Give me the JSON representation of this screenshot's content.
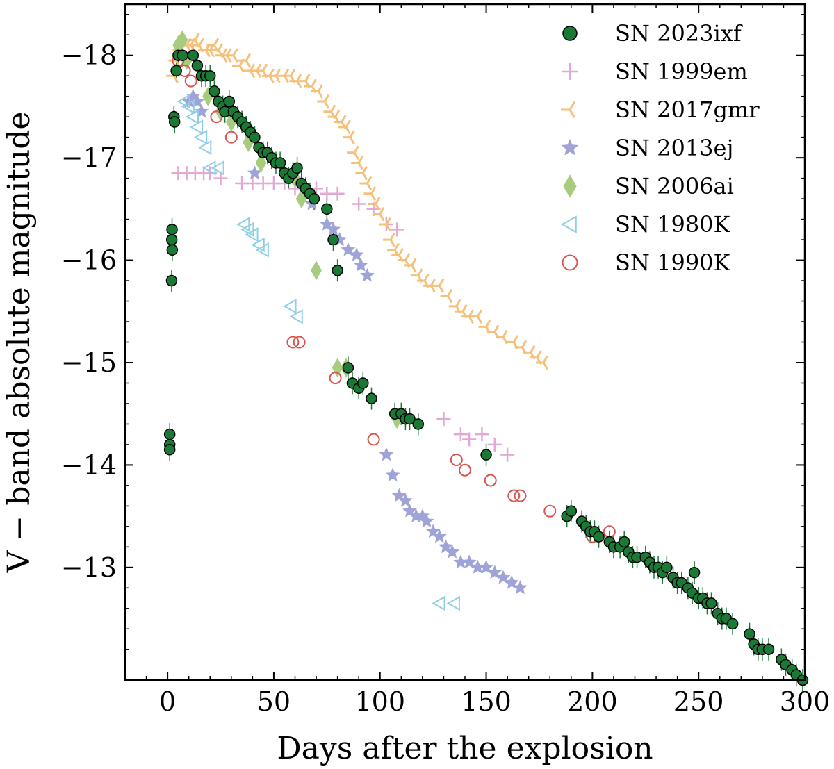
{
  "chart_data": {
    "type": "scatter",
    "title": "",
    "xlabel": "Days after the explosion",
    "ylabel": "V − band absolute magnitude",
    "xlim": [
      -20,
      300
    ],
    "ylim": [
      -11.9,
      -18.5
    ],
    "y_inverted": true,
    "x_ticks": [
      0,
      50,
      100,
      150,
      200,
      250,
      300
    ],
    "y_ticks": [
      -18,
      -17,
      -16,
      -15,
      -14,
      -13
    ],
    "x_tick_labels": [
      "0",
      "50",
      "100",
      "150",
      "200",
      "250",
      "300"
    ],
    "y_tick_labels": [
      "−18",
      "−17",
      "−16",
      "−15",
      "−14",
      "−13"
    ],
    "grid": false,
    "legend_position": "top-right",
    "series": [
      {
        "name": "SN 2023ixf",
        "marker": "filled-circle",
        "color": "#1a7a35",
        "edge": "#000000",
        "errorbars": true,
        "points": [
          [
            1.0,
            -14.2
          ],
          [
            1.0,
            -14.3
          ],
          [
            1.0,
            -14.15
          ],
          [
            1.9,
            -15.8
          ],
          [
            2.0,
            -16.2
          ],
          [
            2.1,
            -16.3
          ],
          [
            2.2,
            -16.1
          ],
          [
            3.0,
            -17.4
          ],
          [
            3.3,
            -17.35
          ],
          [
            4.1,
            -17.85
          ],
          [
            5.0,
            -18.0
          ],
          [
            7.0,
            -18.0
          ],
          [
            12.0,
            -18.0
          ],
          [
            14.0,
            -17.9
          ],
          [
            16.0,
            -17.8
          ],
          [
            18.0,
            -17.8
          ],
          [
            20.0,
            -17.8
          ],
          [
            22.0,
            -17.65
          ],
          [
            24.0,
            -17.55
          ],
          [
            26.0,
            -17.5
          ],
          [
            27.0,
            -17.45
          ],
          [
            29.0,
            -17.55
          ],
          [
            31.0,
            -17.45
          ],
          [
            33.0,
            -17.4
          ],
          [
            35.0,
            -17.35
          ],
          [
            37.0,
            -17.3
          ],
          [
            39.0,
            -17.25
          ],
          [
            41.0,
            -17.2
          ],
          [
            43.0,
            -17.1
          ],
          [
            45.0,
            -17.05
          ],
          [
            47.0,
            -17.05
          ],
          [
            49.0,
            -17.0
          ],
          [
            51.0,
            -16.95
          ],
          [
            53.0,
            -16.95
          ],
          [
            55.0,
            -16.85
          ],
          [
            57.0,
            -16.8
          ],
          [
            59.0,
            -16.85
          ],
          [
            61.0,
            -16.9
          ],
          [
            63.0,
            -16.75
          ],
          [
            65.0,
            -16.7
          ],
          [
            67.0,
            -16.65
          ],
          [
            69.0,
            -16.6
          ],
          [
            75.0,
            -16.5
          ],
          [
            78.0,
            -16.2
          ],
          [
            80.0,
            -15.9
          ],
          [
            85.0,
            -14.95
          ],
          [
            87.0,
            -14.8
          ],
          [
            90.0,
            -14.75
          ],
          [
            92.0,
            -14.8
          ],
          [
            96.0,
            -14.65
          ],
          [
            107.0,
            -14.5
          ],
          [
            110.0,
            -14.5
          ],
          [
            112.0,
            -14.45
          ],
          [
            114.0,
            -14.45
          ],
          [
            118.0,
            -14.4
          ],
          [
            150.0,
            -14.1
          ],
          [
            188.0,
            -13.5
          ],
          [
            190.0,
            -13.55
          ],
          [
            195.0,
            -13.45
          ],
          [
            197.0,
            -13.4
          ],
          [
            199.0,
            -13.35
          ],
          [
            201.0,
            -13.35
          ],
          [
            203.0,
            -13.3
          ],
          [
            208.0,
            -13.25
          ],
          [
            210.0,
            -13.2
          ],
          [
            213.0,
            -13.2
          ],
          [
            215.0,
            -13.25
          ],
          [
            217.0,
            -13.15
          ],
          [
            219.0,
            -13.1
          ],
          [
            221.0,
            -13.1
          ],
          [
            225.0,
            -13.1
          ],
          [
            227.0,
            -13.05
          ],
          [
            229.0,
            -13.0
          ],
          [
            231.0,
            -13.0
          ],
          [
            233.0,
            -12.95
          ],
          [
            235.0,
            -13.0
          ],
          [
            238.0,
            -12.9
          ],
          [
            240.0,
            -12.85
          ],
          [
            242.0,
            -12.85
          ],
          [
            245.0,
            -12.8
          ],
          [
            247.0,
            -12.75
          ],
          [
            248.0,
            -12.95
          ],
          [
            250.0,
            -12.7
          ],
          [
            252.0,
            -12.7
          ],
          [
            254.0,
            -12.65
          ],
          [
            256.0,
            -12.65
          ],
          [
            259.0,
            -12.55
          ],
          [
            261.0,
            -12.5
          ],
          [
            263.0,
            -12.5
          ],
          [
            266.0,
            -12.45
          ],
          [
            274.0,
            -12.35
          ],
          [
            276.0,
            -12.25
          ],
          [
            278.0,
            -12.2
          ],
          [
            280.0,
            -12.2
          ],
          [
            283.0,
            -12.2
          ],
          [
            289.0,
            -12.1
          ],
          [
            291.0,
            -12.05
          ],
          [
            294.0,
            -12.0
          ],
          [
            296.0,
            -11.95
          ],
          [
            299.0,
            -11.9
          ]
        ]
      },
      {
        "name": "SN 1999em",
        "marker": "plus",
        "color": "#e2a9d4",
        "points": [
          [
            5,
            -16.85
          ],
          [
            9,
            -16.85
          ],
          [
            13,
            -16.85
          ],
          [
            17,
            -16.85
          ],
          [
            20,
            -16.85
          ],
          [
            25,
            -16.8
          ],
          [
            35,
            -16.75
          ],
          [
            40,
            -16.75
          ],
          [
            45,
            -16.75
          ],
          [
            50,
            -16.75
          ],
          [
            55,
            -16.75
          ],
          [
            60,
            -16.7
          ],
          [
            65,
            -16.7
          ],
          [
            70,
            -16.7
          ],
          [
            75,
            -16.65
          ],
          [
            80,
            -16.65
          ],
          [
            90,
            -16.55
          ],
          [
            97,
            -16.5
          ],
          [
            103,
            -16.35
          ],
          [
            108,
            -16.3
          ],
          [
            130,
            -14.45
          ],
          [
            138,
            -14.3
          ],
          [
            142,
            -14.25
          ],
          [
            148,
            -14.3
          ],
          [
            154,
            -14.2
          ],
          [
            160,
            -14.1
          ]
        ]
      },
      {
        "name": "SN 2017gmr",
        "marker": "tri",
        "color": "#f5c07a",
        "points": [
          [
            3,
            -17.8
          ],
          [
            4,
            -17.95
          ],
          [
            6,
            -18.05
          ],
          [
            9,
            -18.1
          ],
          [
            11,
            -18.1
          ],
          [
            13,
            -18.15
          ],
          [
            15,
            -18.1
          ],
          [
            18,
            -18.05
          ],
          [
            20,
            -18.05
          ],
          [
            22,
            -18.1
          ],
          [
            24,
            -18.05
          ],
          [
            26,
            -18.0
          ],
          [
            28,
            -18.0
          ],
          [
            31,
            -18.0
          ],
          [
            34,
            -17.9
          ],
          [
            37,
            -17.95
          ],
          [
            39,
            -17.85
          ],
          [
            42,
            -17.85
          ],
          [
            45,
            -17.85
          ],
          [
            48,
            -17.8
          ],
          [
            51,
            -17.8
          ],
          [
            55,
            -17.8
          ],
          [
            58,
            -17.8
          ],
          [
            61,
            -17.75
          ],
          [
            65,
            -17.75
          ],
          [
            68,
            -17.7
          ],
          [
            71,
            -17.65
          ],
          [
            74,
            -17.55
          ],
          [
            77,
            -17.45
          ],
          [
            79,
            -17.4
          ],
          [
            82,
            -17.35
          ],
          [
            84,
            -17.3
          ],
          [
            86,
            -17.2
          ],
          [
            88,
            -17.05
          ],
          [
            90,
            -16.95
          ],
          [
            92,
            -16.85
          ],
          [
            94,
            -16.75
          ],
          [
            96,
            -16.65
          ],
          [
            98,
            -16.55
          ],
          [
            100,
            -16.45
          ],
          [
            103,
            -16.35
          ],
          [
            105,
            -16.2
          ],
          [
            107,
            -16.1
          ],
          [
            109,
            -16.05
          ],
          [
            112,
            -16.0
          ],
          [
            115,
            -15.95
          ],
          [
            118,
            -15.85
          ],
          [
            121,
            -15.8
          ],
          [
            124,
            -15.75
          ],
          [
            128,
            -15.75
          ],
          [
            132,
            -15.65
          ],
          [
            136,
            -15.55
          ],
          [
            139,
            -15.5
          ],
          [
            142,
            -15.45
          ],
          [
            146,
            -15.45
          ],
          [
            150,
            -15.35
          ],
          [
            154,
            -15.3
          ],
          [
            158,
            -15.25
          ],
          [
            163,
            -15.2
          ],
          [
            167,
            -15.15
          ],
          [
            171,
            -15.1
          ],
          [
            174,
            -15.05
          ],
          [
            177,
            -15.0
          ]
        ]
      },
      {
        "name": "SN 2013ej",
        "marker": "star",
        "color": "#9fa3d8",
        "points": [
          [
            10,
            -17.55
          ],
          [
            12,
            -17.6
          ],
          [
            14,
            -17.55
          ],
          [
            16,
            -17.45
          ],
          [
            41,
            -16.85
          ],
          [
            68,
            -16.55
          ],
          [
            75,
            -16.35
          ],
          [
            78,
            -16.3
          ],
          [
            81,
            -16.2
          ],
          [
            85,
            -16.1
          ],
          [
            89,
            -16.05
          ],
          [
            91,
            -15.95
          ],
          [
            94,
            -15.85
          ],
          [
            103,
            -14.1
          ],
          [
            106,
            -13.9
          ],
          [
            109,
            -13.7
          ],
          [
            112,
            -13.65
          ],
          [
            114,
            -13.55
          ],
          [
            117,
            -13.5
          ],
          [
            120,
            -13.5
          ],
          [
            122,
            -13.45
          ],
          [
            125,
            -13.35
          ],
          [
            128,
            -13.3
          ],
          [
            131,
            -13.2
          ],
          [
            134,
            -13.15
          ],
          [
            138,
            -13.05
          ],
          [
            142,
            -13.05
          ],
          [
            146,
            -13.0
          ],
          [
            150,
            -13.0
          ],
          [
            154,
            -12.95
          ],
          [
            158,
            -12.9
          ],
          [
            162,
            -12.85
          ],
          [
            166,
            -12.8
          ]
        ]
      },
      {
        "name": "SN 2006ai",
        "marker": "diamond",
        "color": "#a8cc7d",
        "points": [
          [
            5,
            -18.1
          ],
          [
            7,
            -18.15
          ],
          [
            9,
            -17.95
          ],
          [
            19,
            -17.6
          ],
          [
            25,
            -17.45
          ],
          [
            30,
            -17.35
          ],
          [
            38,
            -17.15
          ],
          [
            44,
            -16.95
          ],
          [
            60,
            -16.8
          ],
          [
            63,
            -16.6
          ],
          [
            70,
            -15.9
          ],
          [
            80,
            -14.95
          ],
          [
            84,
            -14.95
          ],
          [
            108,
            -14.45
          ]
        ]
      },
      {
        "name": "SN 1980K",
        "marker": "triangle-left",
        "color": "#8ecfe7",
        "points": [
          [
            8,
            -17.55
          ],
          [
            10,
            -17.5
          ],
          [
            12,
            -17.4
          ],
          [
            14,
            -17.3
          ],
          [
            16,
            -17.2
          ],
          [
            18,
            -17.1
          ],
          [
            20,
            -16.9
          ],
          [
            24,
            -16.9
          ],
          [
            36,
            -16.35
          ],
          [
            38,
            -16.3
          ],
          [
            40,
            -16.25
          ],
          [
            43,
            -16.15
          ],
          [
            45,
            -16.1
          ],
          [
            58,
            -15.55
          ],
          [
            61,
            -15.45
          ],
          [
            128,
            -12.65
          ],
          [
            135,
            -12.65
          ]
        ]
      },
      {
        "name": "SN 1990K",
        "marker": "open-circle",
        "color": "#d9534f",
        "points": [
          [
            5,
            -17.95
          ],
          [
            8,
            -17.85
          ],
          [
            11,
            -17.75
          ],
          [
            23,
            -17.4
          ],
          [
            30,
            -17.2
          ],
          [
            59,
            -15.2
          ],
          [
            62,
            -15.2
          ],
          [
            79,
            -14.85
          ],
          [
            97,
            -14.25
          ],
          [
            136,
            -14.05
          ],
          [
            140,
            -13.95
          ],
          [
            152,
            -13.85
          ],
          [
            163,
            -13.7
          ],
          [
            166,
            -13.7
          ],
          [
            180,
            -13.55
          ],
          [
            200,
            -13.3
          ],
          [
            208,
            -13.35
          ]
        ]
      }
    ]
  }
}
